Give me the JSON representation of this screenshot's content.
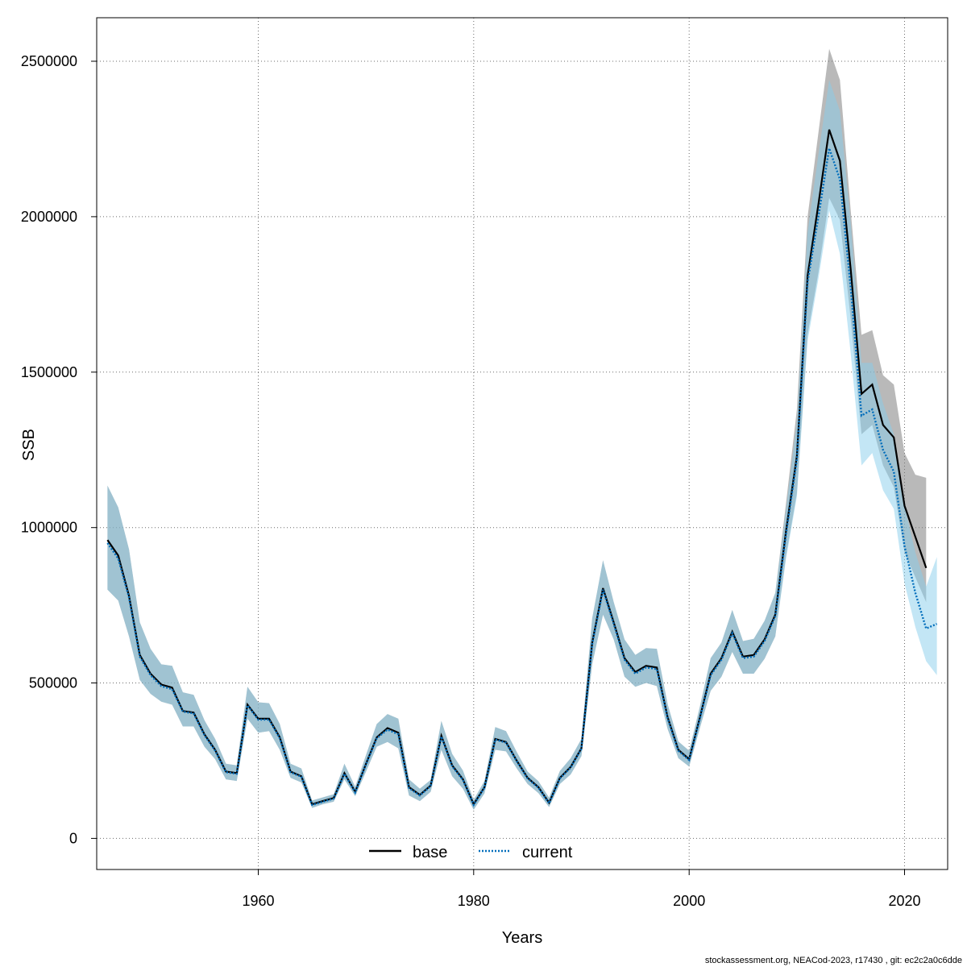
{
  "chart_data": {
    "type": "line",
    "xlabel": "Years",
    "ylabel": "SSB",
    "xlim": [
      1945,
      2024
    ],
    "ylim": [
      -100000,
      2640000
    ],
    "xticks": [
      1960,
      1980,
      2000,
      2020
    ],
    "yticks": [
      0,
      500000,
      1000000,
      1500000,
      2000000,
      2500000
    ],
    "grid": true,
    "legend_position": "bottom",
    "series": [
      {
        "name": "base",
        "line_style": "solid",
        "line_color": "#000000",
        "band_color": "#808080",
        "x": [
          1946,
          1947,
          1948,
          1949,
          1950,
          1951,
          1952,
          1953,
          1954,
          1955,
          1956,
          1957,
          1958,
          1959,
          1960,
          1961,
          1962,
          1963,
          1964,
          1965,
          1966,
          1967,
          1968,
          1969,
          1970,
          1971,
          1972,
          1973,
          1974,
          1975,
          1976,
          1977,
          1978,
          1979,
          1980,
          1981,
          1982,
          1983,
          1984,
          1985,
          1986,
          1987,
          1988,
          1989,
          1990,
          1991,
          1992,
          1993,
          1994,
          1995,
          1996,
          1997,
          1998,
          1999,
          2000,
          2001,
          2002,
          2003,
          2004,
          2005,
          2006,
          2007,
          2008,
          2009,
          2010,
          2011,
          2012,
          2013,
          2014,
          2015,
          2016,
          2017,
          2018,
          2019,
          2020,
          2021,
          2022
        ],
        "y": [
          960000,
          910000,
          780000,
          590000,
          530000,
          495000,
          485000,
          410000,
          405000,
          335000,
          285000,
          215000,
          210000,
          430000,
          385000,
          385000,
          325000,
          215000,
          200000,
          110000,
          120000,
          130000,
          210000,
          150000,
          240000,
          325000,
          355000,
          340000,
          165000,
          140000,
          170000,
          330000,
          235000,
          190000,
          110000,
          165000,
          320000,
          310000,
          250000,
          195000,
          165000,
          115000,
          195000,
          230000,
          290000,
          630000,
          805000,
          695000,
          580000,
          535000,
          555000,
          550000,
          390000,
          285000,
          255000,
          390000,
          530000,
          580000,
          665000,
          585000,
          590000,
          640000,
          720000,
          990000,
          1230000,
          1810000,
          2040000,
          2280000,
          2180000,
          1830000,
          1430000,
          1460000,
          1330000,
          1290000,
          1070000,
          970000,
          870000
        ],
        "lower": [
          800000,
          765000,
          650000,
          510000,
          465000,
          440000,
          430000,
          360000,
          360000,
          295000,
          255000,
          190000,
          185000,
          385000,
          340000,
          345000,
          285000,
          195000,
          180000,
          98000,
          110000,
          118000,
          190000,
          136000,
          215000,
          295000,
          310000,
          290000,
          138000,
          120000,
          150000,
          285000,
          200000,
          160000,
          92000,
          145000,
          285000,
          280000,
          225000,
          175000,
          146000,
          101000,
          175000,
          206000,
          265000,
          560000,
          720000,
          640000,
          520000,
          488000,
          500000,
          490000,
          352000,
          258000,
          231000,
          356000,
          475000,
          520000,
          600000,
          530000,
          530000,
          578000,
          650000,
          910000,
          1110000,
          1620000,
          1820000,
          2060000,
          1990000,
          1670000,
          1300000,
          1330000,
          1200000,
          1130000,
          920000,
          840000,
          760000
        ],
        "upper": [
          1135000,
          1065000,
          930000,
          695000,
          610000,
          560000,
          555000,
          470000,
          462000,
          380000,
          320000,
          240000,
          235000,
          488000,
          438000,
          435000,
          368000,
          240000,
          225000,
          122000,
          132000,
          142000,
          240000,
          166000,
          268000,
          368000,
          400000,
          385000,
          190000,
          160000,
          188000,
          378000,
          272000,
          218000,
          124000,
          185000,
          358000,
          345000,
          278000,
          215000,
          184000,
          131000,
          217000,
          258000,
          320000,
          708000,
          895000,
          760000,
          640000,
          590000,
          612000,
          610000,
          432000,
          312000,
          282000,
          425000,
          580000,
          630000,
          735000,
          635000,
          642000,
          700000,
          790000,
          1080000,
          1380000,
          2000000,
          2270000,
          2540000,
          2440000,
          2020000,
          1620000,
          1635000,
          1490000,
          1460000,
          1240000,
          1170000,
          1160000
        ]
      },
      {
        "name": "current",
        "line_style": "dotted",
        "line_color": "#006dbb",
        "band_color": "#87ceeb",
        "x": [
          1946,
          1947,
          1948,
          1949,
          1950,
          1951,
          1952,
          1953,
          1954,
          1955,
          1956,
          1957,
          1958,
          1959,
          1960,
          1961,
          1962,
          1963,
          1964,
          1965,
          1966,
          1967,
          1968,
          1969,
          1970,
          1971,
          1972,
          1973,
          1974,
          1975,
          1976,
          1977,
          1978,
          1979,
          1980,
          1981,
          1982,
          1983,
          1984,
          1985,
          1986,
          1987,
          1988,
          1989,
          1990,
          1991,
          1992,
          1993,
          1994,
          1995,
          1996,
          1997,
          1998,
          1999,
          2000,
          2001,
          2002,
          2003,
          2004,
          2005,
          2006,
          2007,
          2008,
          2009,
          2010,
          2011,
          2012,
          2013,
          2014,
          2015,
          2016,
          2017,
          2018,
          2019,
          2020,
          2021,
          2022,
          2023
        ],
        "y": [
          950000,
          900000,
          775000,
          585000,
          525000,
          490000,
          480000,
          408000,
          402000,
          332000,
          282000,
          213000,
          208000,
          428000,
          382000,
          382000,
          322000,
          213000,
          198000,
          108000,
          118000,
          128000,
          208000,
          148000,
          238000,
          322000,
          350000,
          335000,
          162000,
          138000,
          168000,
          328000,
          232000,
          188000,
          108000,
          163000,
          318000,
          308000,
          248000,
          193000,
          163000,
          113000,
          193000,
          228000,
          288000,
          625000,
          800000,
          690000,
          575000,
          530000,
          550000,
          545000,
          386000,
          282000,
          252000,
          386000,
          525000,
          575000,
          660000,
          580000,
          585000,
          635000,
          715000,
          980000,
          1220000,
          1790000,
          2000000,
          2220000,
          2120000,
          1770000,
          1360000,
          1380000,
          1250000,
          1180000,
          940000,
          790000,
          675000,
          690000
        ],
        "lower": [
          800000,
          765000,
          650000,
          510000,
          465000,
          440000,
          430000,
          360000,
          360000,
          295000,
          255000,
          190000,
          185000,
          385000,
          340000,
          345000,
          285000,
          195000,
          180000,
          98000,
          110000,
          118000,
          190000,
          136000,
          215000,
          295000,
          310000,
          290000,
          138000,
          120000,
          150000,
          285000,
          200000,
          160000,
          92000,
          145000,
          285000,
          280000,
          225000,
          175000,
          146000,
          101000,
          175000,
          206000,
          265000,
          560000,
          720000,
          640000,
          520000,
          488000,
          500000,
          490000,
          352000,
          258000,
          231000,
          356000,
          475000,
          520000,
          600000,
          530000,
          530000,
          578000,
          650000,
          900000,
          1100000,
          1600000,
          1800000,
          2020000,
          1880000,
          1560000,
          1200000,
          1240000,
          1120000,
          1060000,
          820000,
          680000,
          570000,
          525000
        ],
        "upper": [
          1135000,
          1065000,
          930000,
          695000,
          610000,
          560000,
          555000,
          470000,
          462000,
          380000,
          320000,
          240000,
          235000,
          488000,
          438000,
          435000,
          368000,
          240000,
          225000,
          122000,
          132000,
          142000,
          240000,
          166000,
          268000,
          368000,
          400000,
          385000,
          190000,
          160000,
          188000,
          378000,
          272000,
          218000,
          124000,
          185000,
          358000,
          345000,
          278000,
          215000,
          184000,
          131000,
          217000,
          258000,
          320000,
          708000,
          895000,
          760000,
          640000,
          590000,
          612000,
          610000,
          432000,
          312000,
          282000,
          425000,
          580000,
          630000,
          735000,
          635000,
          642000,
          700000,
          790000,
          1060000,
          1340000,
          1950000,
          2200000,
          2440000,
          2340000,
          1980000,
          1530000,
          1530000,
          1400000,
          1300000,
          1070000,
          920000,
          810000,
          905000
        ]
      }
    ]
  },
  "legend": {
    "base_label": "base",
    "current_label": "current"
  },
  "footer_text": "stockassessment.org, NEACod-2023, r17430 , git: ec2c2a0c6dde"
}
